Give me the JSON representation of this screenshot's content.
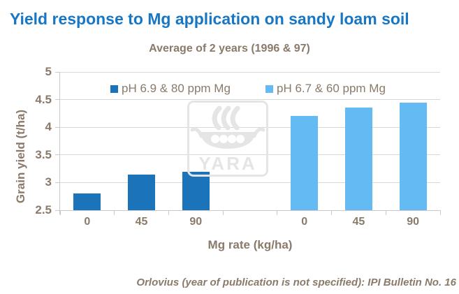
{
  "title": "Yield response to Mg application on sandy loam soil",
  "subtitle": "Average of 2 years (1996 & 97)",
  "citation": "Orlovius (year of publication is not specified): IPI Bulletin No. 16",
  "watermark": {
    "brand": "YARA",
    "icon": "viking-ship-icon"
  },
  "colors": {
    "title_blue": "#1777C5",
    "chart_text": "#8A7A6A",
    "series1_dark_blue": "#1B74B9",
    "series2_light_blue": "#64BAF2",
    "gridline": "#D8D8D8",
    "axis_line": "#C9C9C9",
    "watermark_gray": "#E5E5E5"
  },
  "chart_data": {
    "type": "bar",
    "title": "Yield response to Mg application on sandy loam soil",
    "subtitle": "Average of 2 years (1996 & 97)",
    "categories": [
      "0",
      "45",
      "90"
    ],
    "series": [
      {
        "name": "pH 6.9 & 80 ppm Mg",
        "color": "#1B74B9",
        "values": [
          2.8,
          3.15,
          3.2
        ]
      },
      {
        "name": "pH 6.7 & 60 ppm Mg",
        "color": "#64BAF2",
        "values": [
          4.2,
          4.35,
          4.45
        ]
      }
    ],
    "xlabel": "Mg rate (kg/ha)",
    "ylabel": "Grain yield (t/ha)",
    "ylim": [
      2.5,
      5
    ],
    "ytick_step": 0.5,
    "grid": true,
    "legend_position": "top-inside",
    "layout": "two groups of 3 bars separated by one empty slot; category labels 0/45/90 repeated under each group"
  }
}
